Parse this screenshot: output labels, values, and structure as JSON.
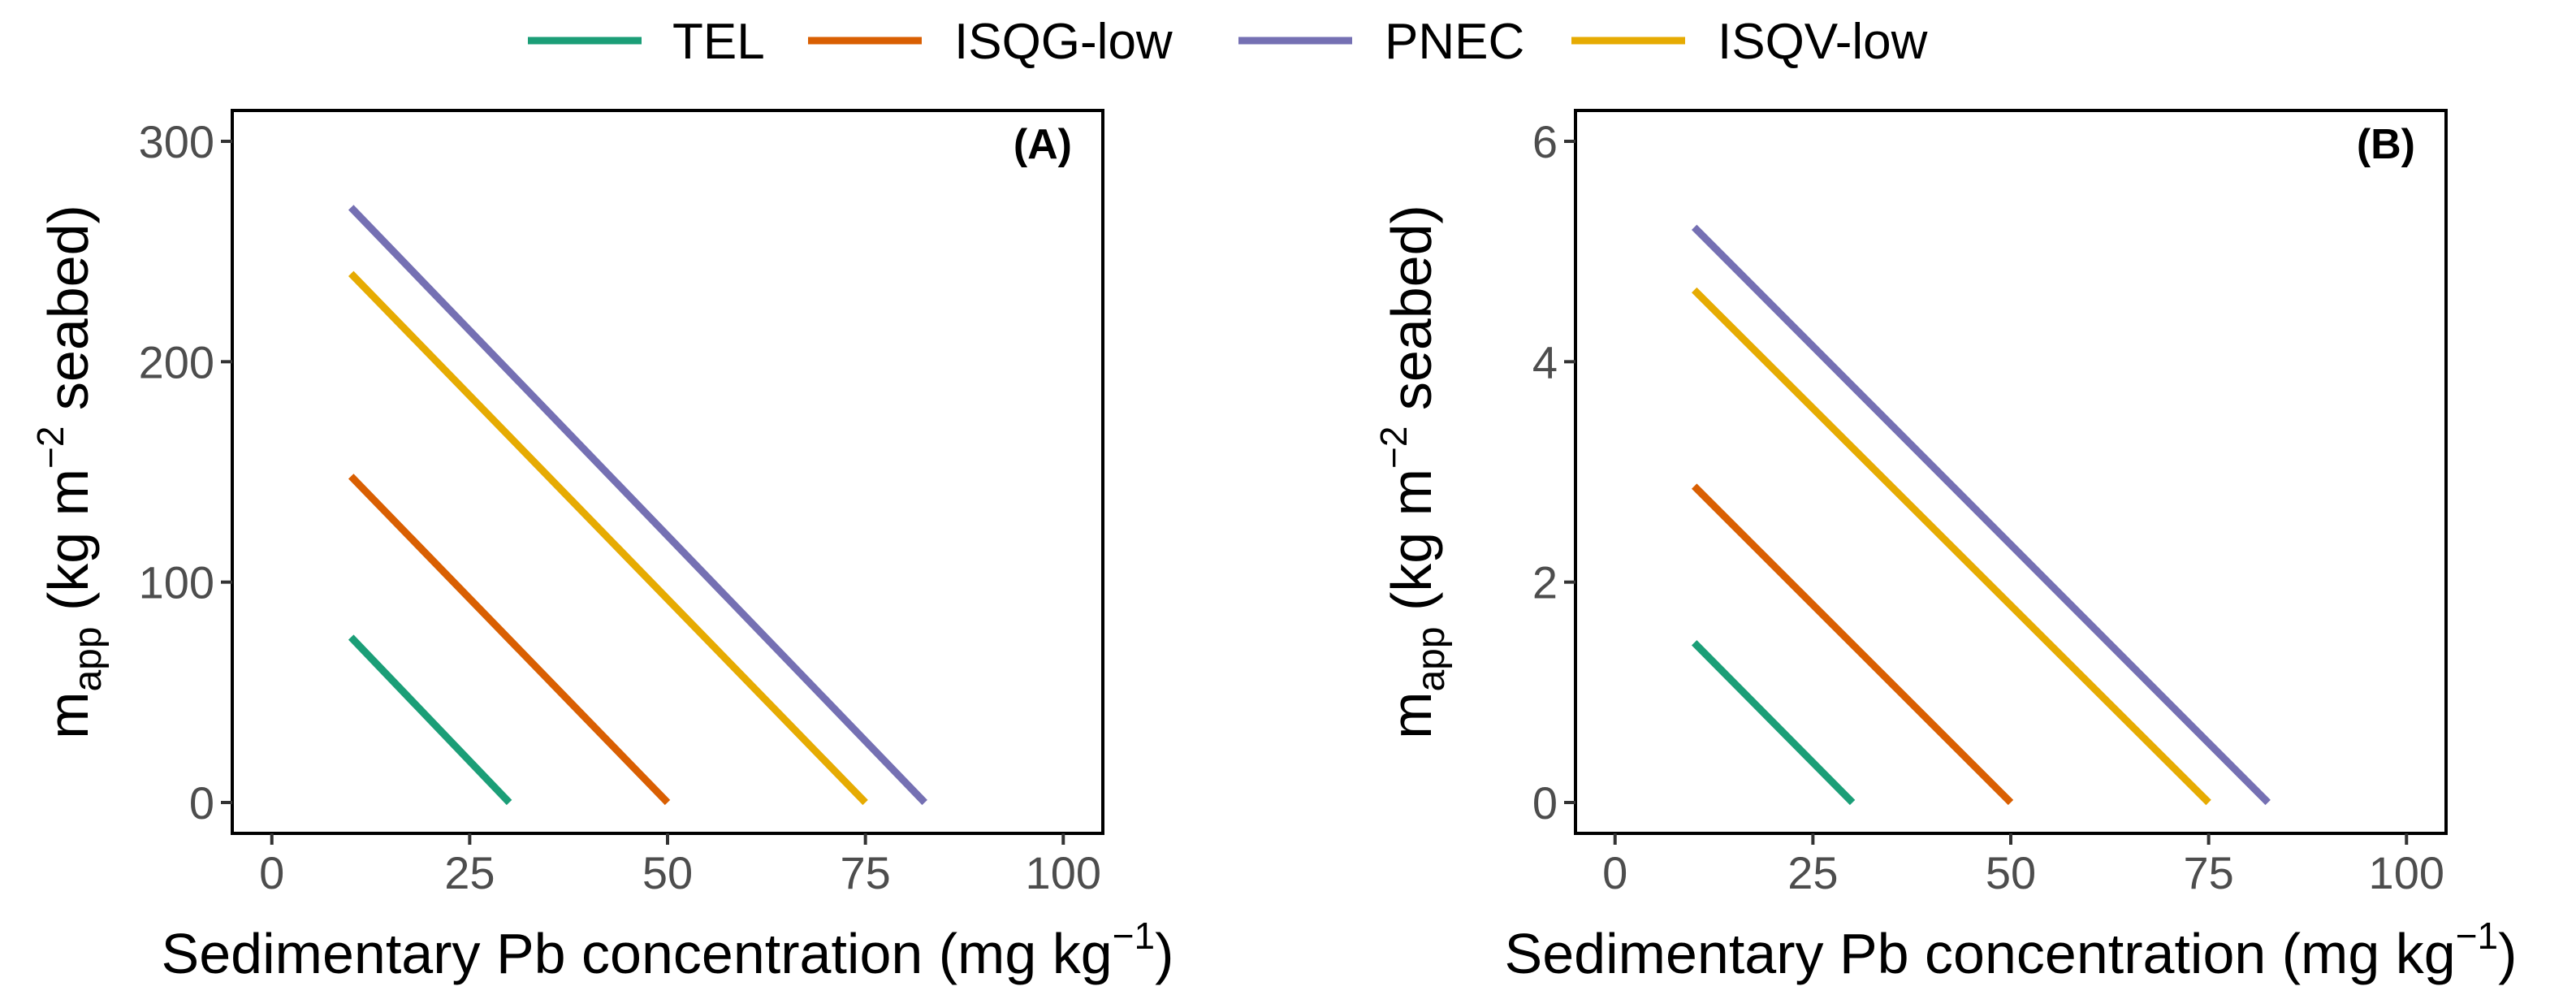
{
  "legend": {
    "items": [
      {
        "label": "TEL",
        "color": "#1b9e77"
      },
      {
        "label": "ISQG-low",
        "color": "#d95f02"
      },
      {
        "label": "PNEC",
        "color": "#7570b3"
      },
      {
        "label": "ISQV-low",
        "color": "#e6ab02"
      }
    ]
  },
  "chart_data": [
    {
      "type": "line",
      "panel_label": "(A)",
      "xlabel": "Sedimentary Pb concentration (mg kg⁻¹)",
      "xlabel_main": "Sedimentary Pb concentration (mg kg",
      "xlabel_sup": "−1",
      "xlabel_close": ")",
      "ylabel": "m_app (kg m⁻² seabed)",
      "ylabel_m": "m",
      "ylabel_sub": "app",
      "ylabel_mid": " (kg m",
      "ylabel_sup": "−2",
      "ylabel_end": " seabed)",
      "xlim": [
        -5,
        105
      ],
      "ylim": [
        -14,
        314
      ],
      "xticks": [
        0,
        25,
        50,
        75,
        100
      ],
      "yticks": [
        0,
        100,
        200,
        300
      ],
      "series": [
        {
          "name": "TEL",
          "x": [
            10,
            30
          ],
          "y": [
            75,
            0
          ]
        },
        {
          "name": "ISQG-low",
          "x": [
            10,
            50
          ],
          "y": [
            148,
            0
          ]
        },
        {
          "name": "PNEC",
          "x": [
            10,
            82.5
          ],
          "y": [
            270,
            0
          ]
        },
        {
          "name": "ISQV-low",
          "x": [
            10,
            75
          ],
          "y": [
            240,
            0
          ]
        }
      ]
    },
    {
      "type": "line",
      "panel_label": "(B)",
      "xlabel": "Sedimentary Pb concentration (mg kg⁻¹)",
      "xlabel_main": "Sedimentary Pb concentration (mg kg",
      "xlabel_sup": "−1",
      "xlabel_close": ")",
      "ylabel": "m_app (kg m⁻² seabed)",
      "ylabel_m": "m",
      "ylabel_sub": "app",
      "ylabel_mid": " (kg m",
      "ylabel_sup": "−2",
      "ylabel_end": " seabed)",
      "xlim": [
        -5,
        105
      ],
      "ylim": [
        -0.28,
        6.28
      ],
      "xticks": [
        0,
        25,
        50,
        75,
        100
      ],
      "yticks": [
        0,
        2,
        4,
        6
      ],
      "series": [
        {
          "name": "TEL",
          "x": [
            10,
            30
          ],
          "y": [
            1.45,
            0
          ]
        },
        {
          "name": "ISQG-low",
          "x": [
            10,
            50
          ],
          "y": [
            2.87,
            0
          ]
        },
        {
          "name": "PNEC",
          "x": [
            10,
            82.5
          ],
          "y": [
            5.22,
            0
          ]
        },
        {
          "name": "ISQV-low",
          "x": [
            10,
            75
          ],
          "y": [
            4.65,
            0
          ]
        }
      ]
    }
  ]
}
